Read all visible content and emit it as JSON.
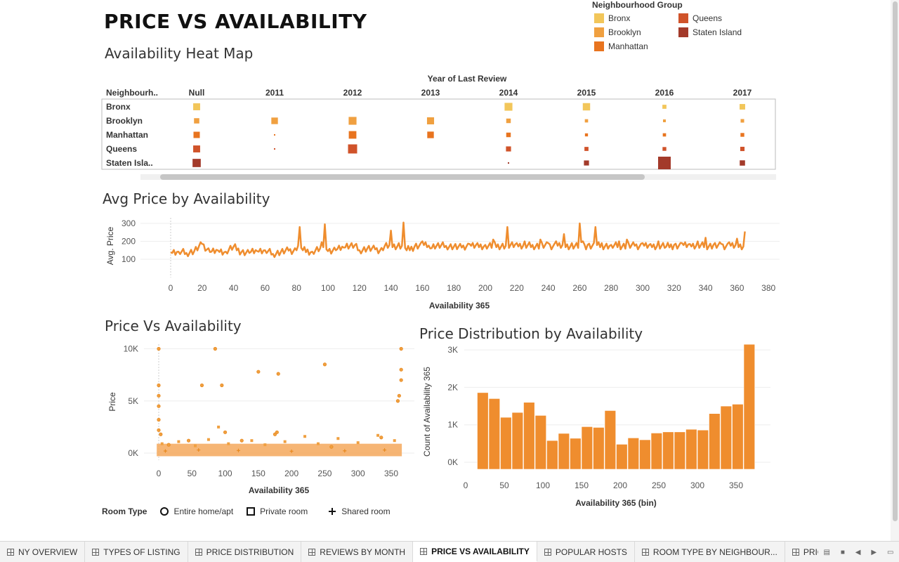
{
  "dashboard": {
    "title": "PRICE VS AVAILABILITY"
  },
  "legend": {
    "title": "Neighbourhood Group",
    "items": [
      {
        "label": "Bronx",
        "color": "#f2c65a"
      },
      {
        "label": "Brooklyn",
        "color": "#f0a040"
      },
      {
        "label": "Manhattan",
        "color": "#e8741f"
      },
      {
        "label": "Queens",
        "color": "#d0532a"
      },
      {
        "label": "Staten Island",
        "color": "#a33a2a"
      }
    ]
  },
  "heatmap": {
    "title": "Availability Heat Map",
    "col_header": "Year of Last Review",
    "row_header": "Neighbourh..",
    "years": [
      "Null",
      "2011",
      "2012",
      "2013",
      "2014",
      "2015",
      "2016",
      "2017"
    ],
    "rows": [
      "Bronx",
      "Brooklyn",
      "Manhattan",
      "Queens",
      "Staten Isla.."
    ],
    "colors": [
      "#f2c65a",
      "#f0a040",
      "#e8741f",
      "#d0532a",
      "#a33a2a"
    ],
    "sizes": [
      [
        0.55,
        0,
        0,
        0,
        0.62,
        0.58,
        0.32,
        0.44
      ],
      [
        0.42,
        0.52,
        0.62,
        0.56,
        0.36,
        0.26,
        0.22,
        0.28
      ],
      [
        0.5,
        0.08,
        0.6,
        0.52,
        0.36,
        0.24,
        0.26,
        0.3
      ],
      [
        0.55,
        0.08,
        0.72,
        0,
        0.4,
        0.32,
        0.3,
        0.34
      ],
      [
        0.65,
        0,
        0,
        0,
        0.08,
        0.4,
        1.0,
        0.42
      ]
    ]
  },
  "avg_price": {
    "title": "Avg Price by Availability",
    "ylabel": "Avg. Price",
    "xlabel": "Availability 365",
    "yticks": [
      100,
      200,
      300
    ],
    "xticks": [
      0,
      20,
      40,
      60,
      80,
      100,
      120,
      140,
      160,
      180,
      200,
      220,
      240,
      260,
      280,
      300,
      320,
      340,
      360,
      380
    ]
  },
  "scatter": {
    "title": "Price Vs Availability",
    "ylabel": "Price",
    "xlabel": "Availability 365",
    "yticks": [
      "0K",
      "5K",
      "10K"
    ],
    "xticks": [
      0,
      50,
      100,
      150,
      200,
      250,
      300,
      350
    ]
  },
  "histogram": {
    "title": "Price Distribution by Availability",
    "ylabel": "Count of Availability 365",
    "xlabel": "Availability 365 (bin)",
    "yticks": [
      "0K",
      "1K",
      "2K",
      "3K"
    ],
    "xticks": [
      0,
      50,
      100,
      150,
      200,
      250,
      300,
      350
    ]
  },
  "room_legend": {
    "title": "Room Type",
    "items": [
      "Entire home/apt",
      "Private room",
      "Shared room"
    ]
  },
  "chart_data": [
    {
      "type": "line",
      "title": "Avg Price by Availability",
      "xlabel": "Availability 365",
      "ylabel": "Avg. Price",
      "xlim": [
        -20,
        385
      ],
      "ylim": [
        40,
        320
      ],
      "x": [
        0,
        5,
        10,
        15,
        20,
        25,
        30,
        35,
        40,
        45,
        50,
        55,
        60,
        65,
        70,
        75,
        80,
        82,
        84,
        90,
        95,
        98,
        100,
        105,
        110,
        115,
        120,
        125,
        130,
        135,
        140,
        145,
        148,
        150,
        155,
        160,
        165,
        170,
        175,
        180,
        185,
        190,
        195,
        200,
        205,
        210,
        214,
        220,
        225,
        230,
        235,
        240,
        245,
        250,
        255,
        260,
        262,
        265,
        270,
        274,
        280,
        285,
        290,
        295,
        300,
        305,
        310,
        315,
        320,
        325,
        330,
        335,
        340,
        345,
        350,
        355,
        360,
        365
      ],
      "series": [
        {
          "values": [
            138,
            142,
            135,
            145,
            185,
            140,
            150,
            142,
            170,
            140,
            135,
            145,
            150,
            130,
            140,
            148,
            150,
            280,
            150,
            142,
            160,
            295,
            145,
            150,
            165,
            190,
            150,
            160,
            155,
            150,
            260,
            190,
            305,
            150,
            170,
            200,
            160,
            190,
            175,
            170,
            165,
            185,
            190,
            180,
            210,
            170,
            280,
            190,
            200,
            180,
            210,
            190,
            200,
            240,
            190,
            300,
            200,
            180,
            280,
            190,
            180,
            200,
            210,
            175,
            190,
            185,
            200,
            170,
            180,
            190,
            185,
            200,
            220,
            180,
            185,
            195,
            215,
            255
          ]
        }
      ]
    },
    {
      "type": "scatter",
      "title": "Price Vs Availability",
      "xlabel": "Availability 365",
      "ylabel": "Price",
      "xlim": [
        -10,
        375
      ],
      "ylim": [
        -500,
        10500
      ],
      "series": [
        {
          "name": "Entire home/apt",
          "x": [
            0,
            0,
            0,
            0,
            0,
            0,
            3,
            15,
            45,
            65,
            85,
            95,
            100,
            125,
            150,
            175,
            178,
            180,
            250,
            260,
            335,
            360,
            362,
            365,
            365,
            365
          ],
          "y": [
            10000,
            6500,
            5500,
            4500,
            3200,
            2200,
            1800,
            800,
            1200,
            6500,
            10000,
            6500,
            2000,
            1200,
            7800,
            1800,
            2000,
            7600,
            8500,
            600,
            1500,
            5000,
            5500,
            10000,
            8000,
            7000
          ]
        },
        {
          "name": "Private room",
          "x": [
            5,
            30,
            55,
            75,
            90,
            105,
            140,
            160,
            190,
            220,
            240,
            270,
            300,
            330,
            355
          ],
          "y": [
            900,
            1100,
            700,
            1300,
            2500,
            900,
            1200,
            800,
            1100,
            1600,
            900,
            1400,
            1000,
            1700,
            1200
          ]
        },
        {
          "name": "Shared room",
          "x": [
            10,
            60,
            120,
            200,
            280,
            340
          ],
          "y": [
            200,
            300,
            250,
            180,
            220,
            300
          ]
        }
      ]
    },
    {
      "type": "bar",
      "title": "Price Distribution by Availability",
      "xlabel": "Availability 365 (bin)",
      "ylabel": "Count of Availability 365",
      "ylim": [
        0,
        3300
      ],
      "bin_width": 15,
      "categories": [
        15,
        30,
        45,
        60,
        75,
        90,
        105,
        120,
        135,
        150,
        165,
        180,
        195,
        210,
        225,
        240,
        255,
        270,
        285,
        300,
        315,
        330,
        345,
        360
      ],
      "values": [
        1860,
        1700,
        1200,
        1330,
        1600,
        1250,
        580,
        770,
        640,
        950,
        930,
        1380,
        480,
        650,
        600,
        780,
        810,
        810,
        880,
        860,
        1300,
        1500,
        1550,
        3150
      ]
    }
  ]
}
